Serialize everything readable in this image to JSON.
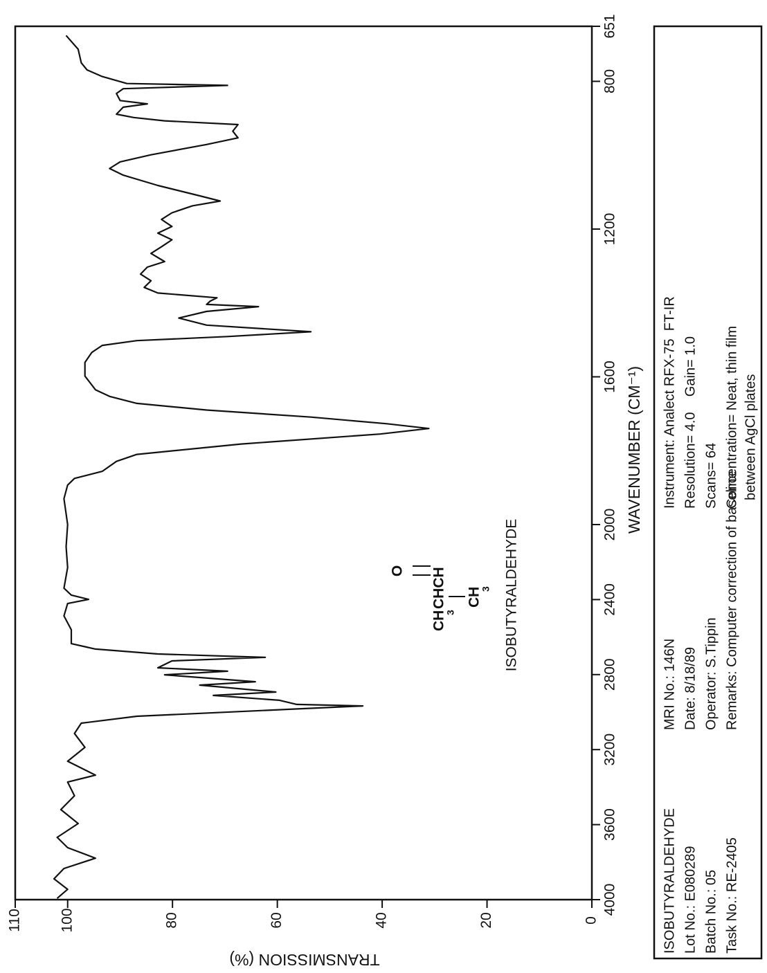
{
  "chart_data": {
    "type": "line",
    "x_label": "WAVENUMBER (CM⁻¹)",
    "y_label": "TRANSMISSION (%)",
    "annotations": [
      "ISOBUTYRALDEHYDE"
    ],
    "structure": [
      "O",
      "CH",
      "3",
      "CHCH",
      "CH",
      "3"
    ],
    "xlim": [
      4000,
      651
    ],
    "x_scale_break": 2000,
    "xticks": [
      4000,
      3600,
      3200,
      2800,
      2400,
      2000,
      1600,
      1200,
      800,
      651
    ],
    "ylim": [
      0,
      110
    ],
    "yticks": [
      0,
      20,
      40,
      60,
      80,
      100,
      110
    ],
    "color": "#111111",
    "x": [
      676,
      713,
      750,
      769,
      787,
      806,
      811,
      820,
      833,
      852,
      861,
      870,
      889,
      898,
      907,
      917,
      935,
      953,
      971,
      999,
      1018,
      1036,
      1054,
      1082,
      1110,
      1124,
      1137,
      1156,
      1174,
      1193,
      1211,
      1229,
      1248,
      1266,
      1288,
      1303,
      1322,
      1340,
      1358,
      1373,
      1386,
      1395,
      1404,
      1410,
      1423,
      1441,
      1460,
      1478,
      1491,
      1502,
      1515,
      1534,
      1561,
      1598,
      1635,
      1653,
      1672,
      1690,
      1709,
      1727,
      1740,
      1755,
      1782,
      1810,
      1829,
      1856,
      1875,
      1893,
      1930,
      2000,
      2118,
      2229,
      2339,
      2376,
      2399,
      2421,
      2487,
      2561,
      2635,
      2664,
      2690,
      2708,
      2727,
      2764,
      2782,
      2801,
      2838,
      2856,
      2893,
      2911,
      2937,
      2959,
      2967,
      2985,
      3022,
      3059,
      3114,
      3188,
      3262,
      3336,
      3373,
      3446,
      3520,
      3594,
      3668,
      3723,
      3779,
      3834,
      3889,
      3945,
      3993
    ],
    "values": [
      100.3,
      98,
      97.4,
      96.3,
      93.4,
      88.7,
      69.5,
      89.4,
      90.7,
      90,
      84.8,
      89.4,
      90.7,
      87.4,
      81.5,
      67.5,
      68.5,
      67.5,
      73.5,
      84.1,
      90,
      92,
      89.4,
      82.8,
      74.8,
      70.9,
      76.2,
      80.1,
      82.1,
      80.1,
      82.8,
      80.1,
      82.1,
      84.1,
      81.5,
      84.8,
      86.1,
      84.1,
      85.4,
      82.8,
      71.5,
      72.8,
      73.5,
      63.6,
      73.5,
      78.8,
      73.5,
      53.6,
      69.5,
      86.8,
      93.4,
      95.4,
      96.7,
      96.7,
      94.7,
      92,
      86.8,
      73.5,
      53.6,
      39.1,
      31.1,
      40.4,
      66.9,
      86.8,
      90.7,
      93.4,
      98.7,
      100,
      100.7,
      100,
      100.3,
      100,
      100.7,
      99.3,
      96,
      100,
      100.7,
      99.3,
      99.3,
      94.7,
      82.8,
      62.3,
      80.1,
      82.8,
      69.5,
      81.5,
      64.2,
      74.8,
      60.3,
      72.2,
      59.6,
      56.3,
      43.7,
      57.6,
      86.8,
      97.4,
      98.7,
      96.7,
      100,
      94.7,
      100,
      98.7,
      101.3,
      98,
      102,
      100,
      94.7,
      100.7,
      102.6,
      100,
      102
    ]
  },
  "info_panel": {
    "columns": [
      [
        "ISOBUTYRALDEHYDE",
        "Lot No.: E080289",
        "Batch No.: 05",
        "Task No.: RE-2405"
      ],
      [
        "MRI No.: 146N",
        "Date: 8/18/89",
        "Operator: S.Tippin",
        "Remarks: Computer correction of baseline"
      ],
      [
        "Instrument: Analect RFX-75  FT-IR",
        "Resolution= 4.0    Gain= 1.0",
        "Scans= 64",
        "Concentration= Neat, thin film",
        "between AgCl plates"
      ]
    ]
  }
}
